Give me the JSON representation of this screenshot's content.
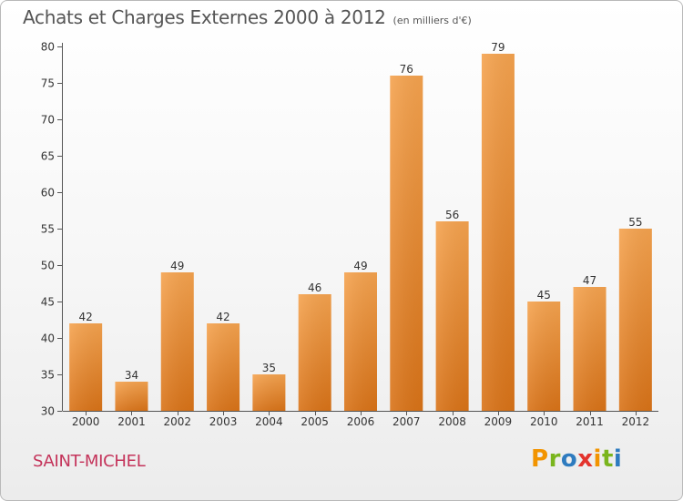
{
  "header": {
    "title": "Achats et Charges Externes 2000 à 2012",
    "subtitle": "(en milliers d'€)"
  },
  "footer": {
    "commune": "SAINT-MICHEL",
    "logo": {
      "letters": [
        "P",
        "r",
        "o",
        "x",
        "i",
        "t",
        "i"
      ],
      "colors": [
        "#f29400",
        "#7ab51d",
        "#2e7bbf",
        "#e3332d",
        "#f29400",
        "#7ab51d",
        "#2e7bbf"
      ]
    }
  },
  "colors": {
    "bar_top": "#f5a34f",
    "bar_bottom": "#d97318",
    "commune": "#c4335a"
  },
  "chart_data": {
    "type": "bar",
    "title": "Achats et Charges Externes 2000 à 2012",
    "subtitle": "(en milliers d'€)",
    "categories": [
      "2000",
      "2001",
      "2002",
      "2003",
      "2004",
      "2005",
      "2006",
      "2007",
      "2008",
      "2009",
      "2010",
      "2011",
      "2012"
    ],
    "values": [
      42,
      34,
      49,
      42,
      35,
      46,
      49,
      76,
      56,
      79,
      45,
      47,
      55
    ],
    "ylim": [
      30,
      80
    ],
    "yticks": [
      30,
      35,
      40,
      45,
      50,
      55,
      60,
      65,
      70,
      75,
      80
    ],
    "grid": false,
    "data_labels": true
  }
}
